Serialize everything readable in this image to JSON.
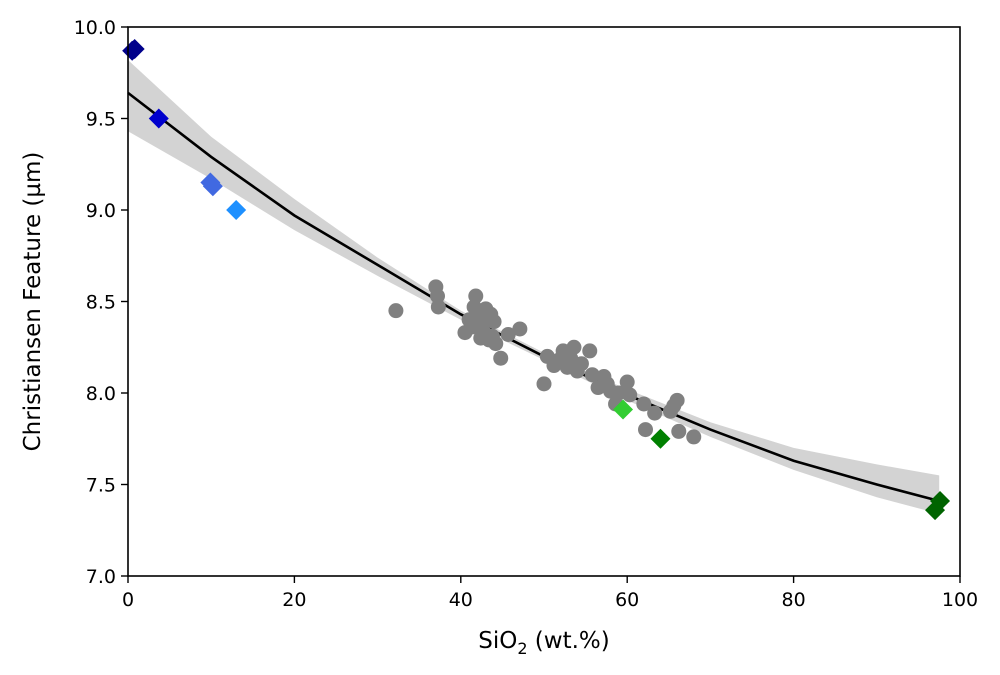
{
  "chart_data": {
    "type": "scatter",
    "title": "",
    "xlabel": {
      "main": "SiO",
      "sub": "2",
      "tail": " (wt.%)"
    },
    "ylabel": "Christiansen Feature (µm)",
    "xlim": [
      0,
      100
    ],
    "ylim": [
      7.0,
      10.0
    ],
    "x_ticks": [
      0,
      20,
      40,
      60,
      80,
      100
    ],
    "x_tick_labels": [
      "0",
      "20",
      "40",
      "60",
      "80",
      "100"
    ],
    "y_ticks": [
      7.0,
      7.5,
      8.0,
      8.5,
      9.0,
      9.5,
      10.0
    ],
    "y_tick_labels": [
      "7.0",
      "7.5",
      "8.0",
      "8.5",
      "9.0",
      "9.5",
      "10.0"
    ],
    "grid": false,
    "legend": "none",
    "series": [
      {
        "marker": "circle",
        "color": "#808080",
        "points": [
          [
            32.2,
            8.45
          ],
          [
            37.0,
            8.58
          ],
          [
            37.2,
            8.53
          ],
          [
            37.3,
            8.47
          ],
          [
            40.5,
            8.33
          ],
          [
            41.0,
            8.4
          ],
          [
            41.3,
            8.36
          ],
          [
            41.6,
            8.47
          ],
          [
            41.8,
            8.53
          ],
          [
            42.0,
            8.42
          ],
          [
            42.2,
            8.38
          ],
          [
            42.4,
            8.3
          ],
          [
            42.6,
            8.44
          ],
          [
            42.8,
            8.33
          ],
          [
            43.0,
            8.46
          ],
          [
            43.2,
            8.4
          ],
          [
            43.4,
            8.29
          ],
          [
            43.6,
            8.43
          ],
          [
            43.8,
            8.31
          ],
          [
            44.0,
            8.39
          ],
          [
            44.2,
            8.27
          ],
          [
            44.8,
            8.19
          ],
          [
            45.7,
            8.32
          ],
          [
            47.1,
            8.35
          ],
          [
            50.0,
            8.05
          ],
          [
            50.4,
            8.2
          ],
          [
            51.2,
            8.15
          ],
          [
            51.8,
            8.18
          ],
          [
            52.3,
            8.23
          ],
          [
            52.8,
            8.14
          ],
          [
            53.2,
            8.19
          ],
          [
            53.6,
            8.25
          ],
          [
            54.0,
            8.12
          ],
          [
            54.5,
            8.16
          ],
          [
            55.5,
            8.23
          ],
          [
            55.8,
            8.1
          ],
          [
            56.5,
            8.03
          ],
          [
            57.2,
            8.09
          ],
          [
            57.6,
            8.05
          ],
          [
            58.0,
            8.01
          ],
          [
            58.6,
            7.94
          ],
          [
            59.0,
            8.0
          ],
          [
            60.0,
            8.06
          ],
          [
            60.3,
            7.99
          ],
          [
            62.0,
            7.94
          ],
          [
            62.2,
            7.8
          ],
          [
            63.3,
            7.89
          ],
          [
            65.2,
            7.9
          ],
          [
            65.6,
            7.93
          ],
          [
            66.0,
            7.96
          ],
          [
            66.2,
            7.79
          ],
          [
            68.0,
            7.76
          ]
        ]
      },
      {
        "marker": "diamond",
        "points": [
          [
            0.5,
            9.87,
            "#00008b"
          ],
          [
            0.8,
            9.88,
            "#00008b"
          ],
          [
            3.7,
            9.5,
            "#0000cd"
          ],
          [
            9.9,
            9.15,
            "#4169e1"
          ],
          [
            10.2,
            9.13,
            "#4169e1"
          ],
          [
            13.0,
            9.0,
            "#1e90ff"
          ],
          [
            59.5,
            7.91,
            "#32cd32"
          ],
          [
            64.0,
            7.75,
            "#008000"
          ],
          [
            97.0,
            7.36,
            "#006400"
          ],
          [
            97.6,
            7.41,
            "#006400"
          ]
        ]
      }
    ],
    "fit_line": {
      "color": "#000000",
      "points": [
        [
          0,
          9.64
        ],
        [
          10,
          9.29
        ],
        [
          20,
          8.97
        ],
        [
          30,
          8.7
        ],
        [
          40,
          8.43
        ],
        [
          50,
          8.2
        ],
        [
          60,
          7.99
        ],
        [
          70,
          7.8
        ],
        [
          80,
          7.63
        ],
        [
          90,
          7.5
        ],
        [
          97.5,
          7.41
        ]
      ]
    },
    "confidence_band": {
      "color": "#d3d3d3",
      "upper": [
        [
          0,
          9.82
        ],
        [
          10,
          9.4
        ],
        [
          20,
          9.06
        ],
        [
          30,
          8.74
        ],
        [
          40,
          8.45
        ],
        [
          50,
          8.22
        ],
        [
          60,
          8.02
        ],
        [
          70,
          7.84
        ],
        [
          80,
          7.7
        ],
        [
          90,
          7.61
        ],
        [
          97.5,
          7.55
        ]
      ],
      "lower": [
        [
          0,
          9.43
        ],
        [
          10,
          9.17
        ],
        [
          20,
          8.89
        ],
        [
          30,
          8.64
        ],
        [
          40,
          8.4
        ],
        [
          50,
          8.18
        ],
        [
          60,
          7.96
        ],
        [
          70,
          7.76
        ],
        [
          80,
          7.58
        ],
        [
          90,
          7.43
        ],
        [
          97.5,
          7.34
        ]
      ]
    }
  }
}
